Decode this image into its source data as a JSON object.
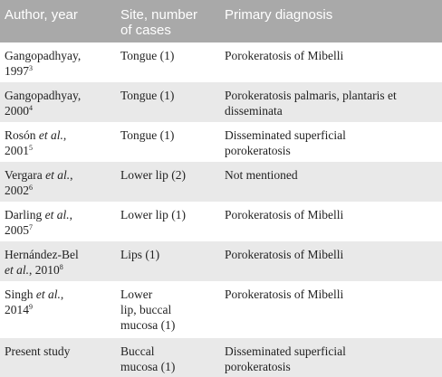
{
  "header": {
    "col_author": "Author, year",
    "col_site": "Site, number\nof cases",
    "col_diagnosis": "Primary diagnosis"
  },
  "rows": [
    {
      "author_name": "Gangopadhyay,",
      "author_etal": "",
      "author_year": "1997",
      "ref": "3",
      "site": "Tongue (1)",
      "diagnosis": "Porokeratosis of Mibelli"
    },
    {
      "author_name": "Gangopadhyay,",
      "author_etal": "",
      "author_year": "2000",
      "ref": "4",
      "site": "Tongue (1)",
      "diagnosis": "Porokeratosis palmaris, plantaris et\ndisseminata"
    },
    {
      "author_name": "Rosón",
      "author_etal": "et al.",
      "author_year": "2001",
      "ref": "5",
      "site": "Tongue (1)",
      "diagnosis": "Disseminated superficial\nporokeratosis"
    },
    {
      "author_name": "Vergara",
      "author_etal": "et al.",
      "author_year": "2002",
      "ref": "6",
      "site": "Lower lip (2)",
      "diagnosis": "Not mentioned"
    },
    {
      "author_name": "Darling",
      "author_etal": "et al.",
      "author_year": "2005",
      "ref": "7",
      "site": "Lower lip (1)",
      "diagnosis": "Porokeratosis of Mibelli"
    },
    {
      "author_name": "Hernández-Bel",
      "author_etal": "et al.",
      "author_year": "2010",
      "ref": "8",
      "site": "Lips (1)",
      "diagnosis": "Porokeratosis of Mibelli"
    },
    {
      "author_name": "Singh",
      "author_etal": "et al.",
      "author_year": "2014",
      "ref": "9",
      "site": "Lower\nlip, buccal\nmucosa (1)",
      "diagnosis": "Porokeratosis of Mibelli"
    },
    {
      "author_name": "Present study",
      "author_etal": "",
      "author_year": "",
      "ref": "",
      "site": "Buccal\nmucosa (1)",
      "diagnosis": "Disseminated superficial\nporokeratosis"
    }
  ],
  "colors": {
    "header_bg": "#a9a9a9",
    "shaded_row_bg": "#e9e9e9"
  }
}
